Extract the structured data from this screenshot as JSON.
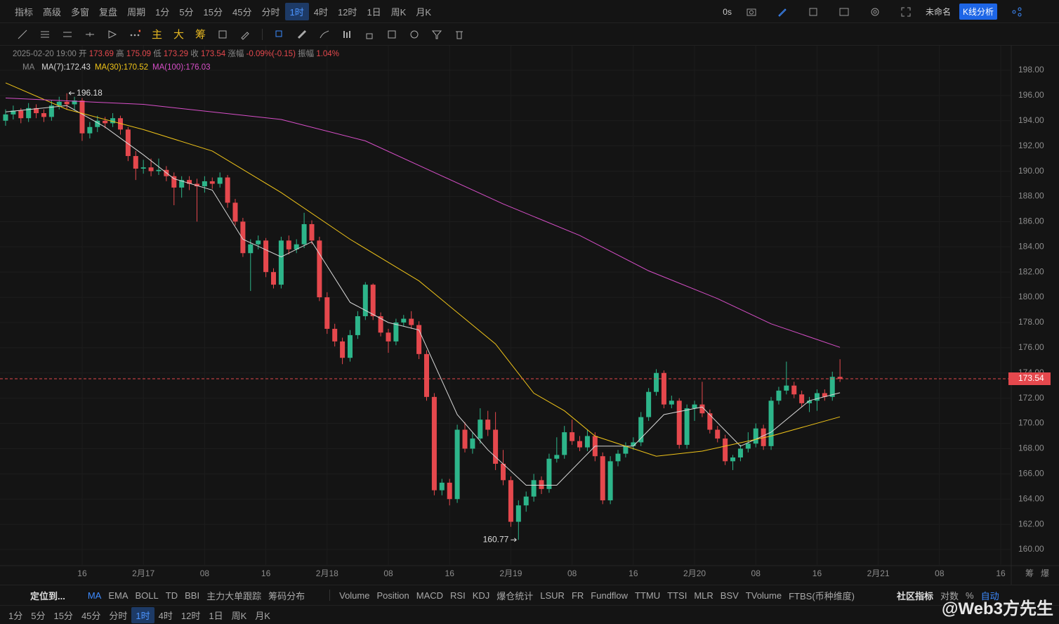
{
  "toolbar": {
    "left": [
      "指标",
      "高级",
      "多窗",
      "复盘"
    ],
    "period_label": "周期",
    "periods": [
      "1分",
      "5分",
      "15分",
      "45分",
      "分时",
      "1时",
      "4时",
      "12时",
      "1日",
      "周K",
      "月K"
    ],
    "active_period": 5,
    "timer": "0s",
    "layout": "未命名",
    "button": "K线分析"
  },
  "drawing_bar": {
    "modes": [
      "主",
      "大",
      "筹"
    ]
  },
  "legend": {
    "datetime": "2025-02-20 19:00",
    "labels": [
      "开",
      "高",
      "低",
      "收"
    ],
    "change_label": "涨幅",
    "change": "-0.09%(-0.15)",
    "amplitude_label": "振幅",
    "amplitude": "1.04%",
    "ma_label": "MA"
  },
  "right_axis_icons": [
    "筹",
    "爆"
  ],
  "indicator_bar": {
    "locate": "定位到...",
    "main": [
      "MA",
      "EMA",
      "BOLL",
      "TD",
      "BBI",
      "主力大单跟踪",
      "筹码分布"
    ],
    "active_main": 0,
    "sub": [
      "Volume",
      "Position",
      "MACD",
      "RSI",
      "KDJ",
      "爆仓统计",
      "LSUR",
      "FR",
      "Fundflow",
      "TTMU",
      "TTSI",
      "MLR",
      "BSV",
      "TVolume",
      "FTBS(币种维度)"
    ],
    "community": "社区指标",
    "options": [
      "对数",
      "%",
      "自动"
    ],
    "active_option": 2
  },
  "watermark": "@Web3方先生",
  "chart_data": {
    "type": "candlestick",
    "up_color": "#2db58a",
    "down_color": "#e5484d",
    "grid": true,
    "xlim": [
      -0.73,
      131.37
    ],
    "ylim": [
      158.72,
      199.95
    ],
    "yticks": [
      {
        "value": 160,
        "label": "160.00"
      },
      {
        "value": 162,
        "label": "162.00"
      },
      {
        "value": 164,
        "label": "164.00"
      },
      {
        "value": 166,
        "label": "166.00"
      },
      {
        "value": 168,
        "label": "168.00"
      },
      {
        "value": 170,
        "label": "170.00"
      },
      {
        "value": 172,
        "label": "172.00"
      },
      {
        "value": 174,
        "label": "174.00"
      },
      {
        "value": 176,
        "label": "176.00"
      },
      {
        "value": 178,
        "label": "178.00"
      },
      {
        "value": 180,
        "label": "180.00"
      },
      {
        "value": 182,
        "label": "182.00"
      },
      {
        "value": 184,
        "label": "184.00"
      },
      {
        "value": 186,
        "label": "186.00"
      },
      {
        "value": 188,
        "label": "188.00"
      },
      {
        "value": 190,
        "label": "190.00"
      },
      {
        "value": 192,
        "label": "192.00"
      },
      {
        "value": 194,
        "label": "194.00"
      },
      {
        "value": 196,
        "label": "196.00"
      },
      {
        "value": 198,
        "label": "198.00"
      }
    ],
    "xticks": [
      {
        "value": 10,
        "label": "16"
      },
      {
        "value": 18,
        "label": "2月17"
      },
      {
        "value": 26,
        "label": "08"
      },
      {
        "value": 34,
        "label": "16"
      },
      {
        "value": 42,
        "label": "2月18"
      },
      {
        "value": 50,
        "label": "08"
      },
      {
        "value": 58,
        "label": "16"
      },
      {
        "value": 66,
        "label": "2月19"
      },
      {
        "value": 74,
        "label": "08"
      },
      {
        "value": 82,
        "label": "16"
      },
      {
        "value": 90,
        "label": "2月20"
      },
      {
        "value": 98,
        "label": "08"
      },
      {
        "value": 106,
        "label": "16"
      },
      {
        "value": 114,
        "label": "2月21"
      },
      {
        "value": 122,
        "label": "08"
      },
      {
        "value": 130,
        "label": "16"
      }
    ],
    "high_marker": 8,
    "low_marker": 67,
    "candles": [
      [
        194.0,
        194.9,
        193.6,
        194.5
      ],
      [
        194.5,
        195.2,
        194.1,
        194.8
      ],
      [
        194.8,
        195.0,
        193.8,
        194.2
      ],
      [
        194.2,
        195.4,
        193.9,
        195.0
      ],
      [
        195.0,
        195.3,
        194.2,
        194.6
      ],
      [
        194.6,
        194.9,
        193.9,
        194.3
      ],
      [
        194.3,
        195.6,
        194.0,
        195.2
      ],
      [
        195.2,
        195.9,
        194.9,
        195.5
      ],
      [
        195.5,
        196.18,
        194.9,
        195.3
      ],
      [
        195.3,
        195.9,
        194.8,
        195.6
      ],
      [
        195.6,
        195.8,
        192.4,
        193.0
      ],
      [
        193.0,
        193.9,
        192.6,
        193.5
      ],
      [
        193.5,
        194.4,
        193.1,
        194.0
      ],
      [
        194.0,
        194.3,
        193.4,
        193.8
      ],
      [
        193.8,
        194.6,
        193.5,
        194.2
      ],
      [
        194.2,
        194.4,
        192.9,
        193.3
      ],
      [
        193.3,
        193.5,
        190.8,
        191.2
      ],
      [
        191.2,
        191.6,
        189.3,
        190.2
      ],
      [
        190.2,
        190.9,
        189.8,
        190.3
      ],
      [
        190.3,
        191.0,
        189.6,
        190.0
      ],
      [
        190.0,
        191.0,
        189.7,
        190.1
      ],
      [
        190.1,
        190.4,
        189.2,
        189.6
      ],
      [
        189.6,
        189.9,
        187.3,
        188.7
      ],
      [
        188.7,
        189.6,
        187.9,
        189.3
      ],
      [
        189.3,
        189.6,
        188.5,
        189.0
      ],
      [
        189.0,
        189.4,
        186.0,
        188.8
      ],
      [
        188.8,
        189.6,
        188.3,
        189.2
      ],
      [
        189.2,
        189.5,
        188.6,
        189.0
      ],
      [
        189.0,
        189.9,
        188.7,
        189.5
      ],
      [
        189.5,
        189.7,
        187.1,
        187.5
      ],
      [
        187.5,
        187.8,
        185.7,
        186.0
      ],
      [
        186.0,
        186.3,
        183.2,
        183.5
      ],
      [
        183.5,
        184.6,
        180.5,
        184.2
      ],
      [
        184.2,
        184.9,
        183.8,
        184.5
      ],
      [
        184.5,
        184.7,
        181.6,
        182.0
      ],
      [
        182.0,
        182.3,
        180.7,
        181.0
      ],
      [
        181.0,
        184.8,
        180.7,
        184.5
      ],
      [
        184.5,
        184.9,
        183.4,
        183.8
      ],
      [
        183.8,
        184.6,
        183.5,
        184.2
      ],
      [
        184.2,
        186.7,
        183.9,
        185.8
      ],
      [
        185.8,
        186.1,
        184.2,
        184.5
      ],
      [
        184.5,
        184.8,
        179.7,
        180.0
      ],
      [
        180.0,
        180.4,
        177.1,
        177.5
      ],
      [
        177.5,
        177.9,
        176.1,
        176.5
      ],
      [
        176.5,
        176.8,
        174.7,
        175.2
      ],
      [
        175.2,
        177.4,
        174.9,
        177.0
      ],
      [
        177.0,
        178.9,
        176.7,
        178.5
      ],
      [
        178.5,
        181.2,
        178.2,
        181.0
      ],
      [
        181.0,
        181.1,
        178.2,
        178.5
      ],
      [
        178.5,
        178.8,
        176.9,
        177.2
      ],
      [
        177.2,
        177.5,
        175.6,
        176.5
      ],
      [
        176.5,
        178.3,
        176.2,
        178.0
      ],
      [
        178.0,
        178.6,
        177.7,
        178.3
      ],
      [
        178.3,
        178.9,
        177.5,
        177.8
      ],
      [
        177.8,
        178.1,
        175.1,
        175.5
      ],
      [
        175.5,
        175.8,
        171.8,
        172.1
      ],
      [
        172.1,
        172.4,
        164.3,
        164.7
      ],
      [
        164.7,
        165.6,
        164.3,
        165.3
      ],
      [
        165.3,
        165.6,
        163.5,
        164.0
      ],
      [
        164.0,
        169.9,
        163.7,
        169.5
      ],
      [
        169.5,
        170.1,
        167.7,
        168.0
      ],
      [
        168.0,
        169.3,
        167.6,
        168.8
      ],
      [
        168.8,
        171.2,
        168.4,
        170.3
      ],
      [
        170.3,
        171.0,
        169.0,
        169.5
      ],
      [
        169.5,
        170.9,
        166.3,
        166.8
      ],
      [
        166.8,
        167.9,
        165.1,
        165.5
      ],
      [
        165.5,
        165.8,
        161.8,
        162.2
      ],
      [
        162.2,
        163.9,
        160.77,
        163.5
      ],
      [
        163.5,
        164.6,
        163.0,
        164.2
      ],
      [
        164.2,
        166.0,
        163.8,
        165.5
      ],
      [
        165.5,
        165.8,
        164.4,
        164.8
      ],
      [
        164.8,
        167.6,
        164.5,
        167.2
      ],
      [
        167.2,
        168.9,
        166.9,
        167.5
      ],
      [
        167.5,
        169.8,
        167.2,
        169.3
      ],
      [
        169.3,
        170.3,
        168.3,
        168.6
      ],
      [
        168.6,
        169.0,
        167.8,
        168.1
      ],
      [
        168.1,
        169.5,
        167.8,
        169.0
      ],
      [
        169.0,
        169.3,
        167.0,
        167.4
      ],
      [
        167.4,
        167.7,
        163.6,
        163.9
      ],
      [
        163.9,
        167.4,
        163.6,
        167.0
      ],
      [
        167.0,
        167.9,
        166.6,
        167.6
      ],
      [
        167.6,
        168.5,
        167.3,
        168.2
      ],
      [
        168.2,
        168.9,
        167.9,
        168.5
      ],
      [
        168.5,
        170.9,
        168.2,
        170.5
      ],
      [
        170.5,
        172.8,
        170.2,
        172.5
      ],
      [
        172.5,
        174.3,
        172.2,
        174.0
      ],
      [
        174.0,
        174.2,
        171.2,
        171.5
      ],
      [
        171.5,
        172.2,
        171.2,
        171.8
      ],
      [
        171.8,
        172.0,
        168.0,
        168.3
      ],
      [
        168.3,
        171.5,
        168.0,
        171.2
      ],
      [
        171.2,
        171.8,
        170.2,
        171.5
      ],
      [
        171.5,
        173.3,
        170.5,
        170.8
      ],
      [
        170.8,
        171.1,
        169.2,
        169.5
      ],
      [
        169.5,
        169.8,
        168.5,
        168.8
      ],
      [
        168.8,
        169.1,
        166.7,
        167.0
      ],
      [
        167.0,
        167.5,
        166.3,
        167.3
      ],
      [
        167.3,
        168.3,
        167.0,
        168.0
      ],
      [
        168.0,
        169.3,
        167.7,
        168.4
      ],
      [
        168.4,
        170.0,
        168.1,
        169.6
      ],
      [
        169.6,
        169.9,
        167.9,
        168.2
      ],
      [
        168.2,
        172.1,
        167.9,
        171.8
      ],
      [
        171.8,
        172.9,
        171.5,
        172.6
      ],
      [
        172.6,
        174.9,
        172.3,
        173.0
      ],
      [
        173.0,
        173.3,
        172.0,
        172.3
      ],
      [
        172.3,
        172.6,
        171.3,
        171.6
      ],
      [
        171.6,
        172.1,
        170.9,
        171.8
      ],
      [
        171.8,
        172.7,
        171.0,
        172.4
      ],
      [
        172.4,
        172.7,
        171.8,
        172.1
      ],
      [
        172.1,
        174.1,
        171.8,
        173.69
      ],
      [
        173.69,
        175.09,
        173.29,
        173.54
      ]
    ],
    "series": [
      {
        "name": "MA(7)",
        "color": "#d8d8d8",
        "last": 172.43,
        "x": [
          0,
          8,
          13,
          18,
          22,
          27,
          31,
          36,
          40,
          45,
          50,
          54,
          59,
          63,
          68,
          72,
          77,
          82,
          86,
          91,
          96,
          100,
          105,
          109
        ],
        "values": [
          194.7,
          195.2,
          193.5,
          191.3,
          189.4,
          188.5,
          184.6,
          183.2,
          184.4,
          179.6,
          178,
          177.4,
          170.7,
          167.9,
          165.1,
          165.1,
          168.2,
          168.2,
          170.7,
          171.3,
          168.2,
          169.3,
          171.8,
          172.43
        ]
      },
      {
        "name": "MA(30)",
        "color": "#f0c419",
        "last": 170.52,
        "x": [
          0,
          8,
          18,
          27,
          36,
          45,
          54,
          64,
          69,
          73,
          77,
          85,
          91,
          100,
          109
        ],
        "values": [
          197.0,
          194.9,
          193.3,
          191.6,
          188.3,
          184.6,
          181.3,
          176.3,
          172.4,
          171.0,
          169.0,
          167.4,
          167.8,
          169.0,
          170.52
        ]
      },
      {
        "name": "MA(100)",
        "color": "#d84fc9",
        "last": 176.03,
        "x": [
          0,
          18,
          36,
          47,
          56,
          65,
          75,
          84,
          93,
          100,
          109
        ],
        "values": [
          195.8,
          195.3,
          194.1,
          192.4,
          189.9,
          187.4,
          184.9,
          182.1,
          179.9,
          177.9,
          176.03
        ]
      }
    ]
  }
}
